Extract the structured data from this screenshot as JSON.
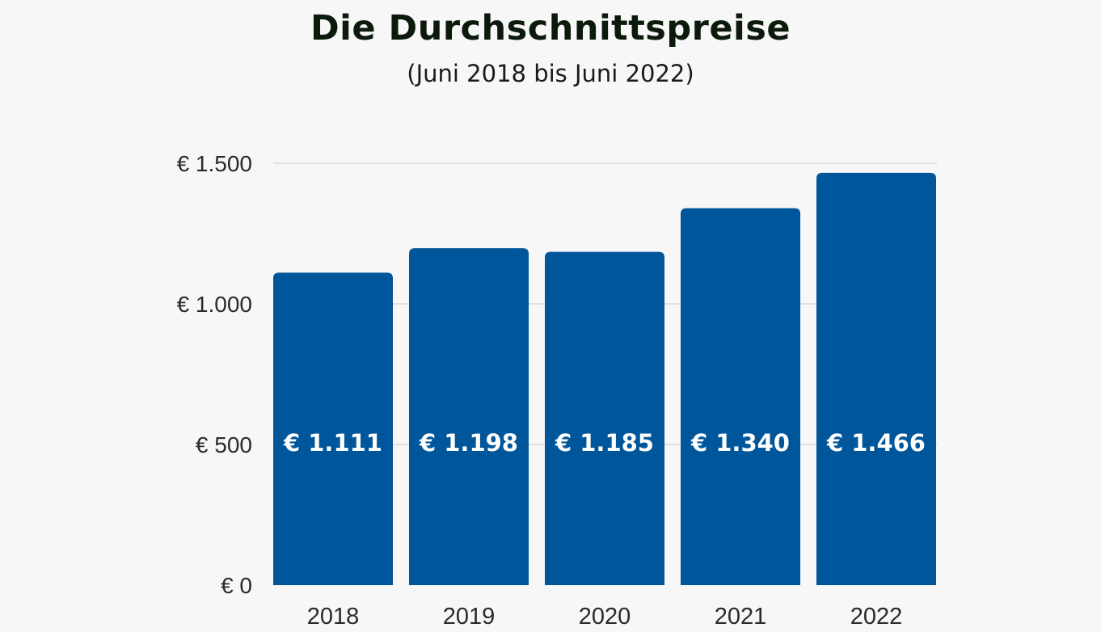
{
  "chart_data": {
    "type": "bar",
    "title": "Die Durchschnittspreise",
    "subtitle": "(Juni 2018 bis Juni 2022)",
    "categories": [
      "2018",
      "2019",
      "2020",
      "2021",
      "2022"
    ],
    "values": [
      1111,
      1198,
      1185,
      1340,
      1466
    ],
    "data_labels": [
      "€ 1.111",
      "€ 1.198",
      "€ 1.185",
      "€ 1.340",
      "€ 1.466"
    ],
    "xlabel": "",
    "ylabel": "",
    "ylim": [
      0,
      1500
    ],
    "yticks": [
      0,
      500,
      1000,
      1500
    ],
    "ytick_labels": [
      "€ 0",
      "€ 500",
      "€ 1.000",
      "€ 1.500"
    ],
    "grid": true,
    "legend": "none",
    "bar_color": "#00569b",
    "grid_color": "#c8c8c8",
    "background": "#f7f7f7"
  }
}
